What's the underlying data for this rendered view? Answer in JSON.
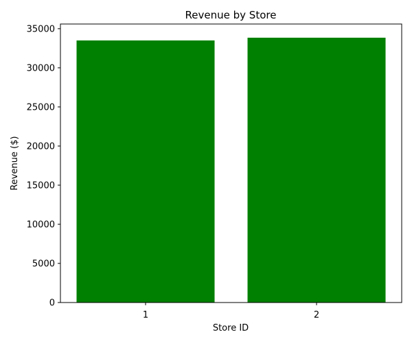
{
  "chart_data": {
    "type": "bar",
    "title": "Revenue by Store",
    "xlabel": "Store ID",
    "ylabel": "Revenue ($)",
    "categories": [
      "1",
      "2"
    ],
    "values": [
      33500,
      33850
    ],
    "ylim": [
      0,
      35600
    ],
    "yticks": [
      "0",
      "5000",
      "10000",
      "15000",
      "20000",
      "25000",
      "30000",
      "35000"
    ],
    "bar_color": "#008000",
    "grid": false,
    "legend": "none"
  }
}
